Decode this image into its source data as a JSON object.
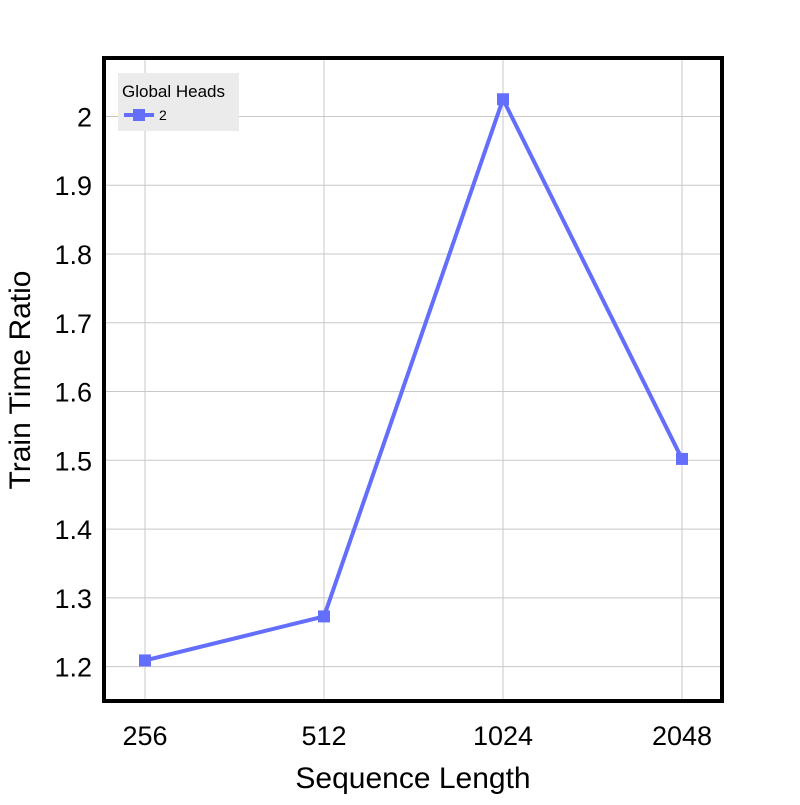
{
  "chart_data": {
    "type": "line",
    "title": "",
    "xlabel": "Sequence Length",
    "ylabel": "Train Time Ratio",
    "categories": [
      "256",
      "512",
      "1024",
      "2048"
    ],
    "y_ticks": [
      1.2,
      1.3,
      1.4,
      1.5,
      1.6,
      1.7,
      1.8,
      1.9,
      2
    ],
    "ylim": [
      1.15,
      2.085
    ],
    "grid": true,
    "legend": {
      "title": "Global Heads",
      "placement": "top-left"
    },
    "series": [
      {
        "name": "2",
        "values": [
          1.209,
          1.273,
          2.025,
          1.502
        ],
        "color": "#636efa",
        "marker": "square"
      }
    ]
  }
}
